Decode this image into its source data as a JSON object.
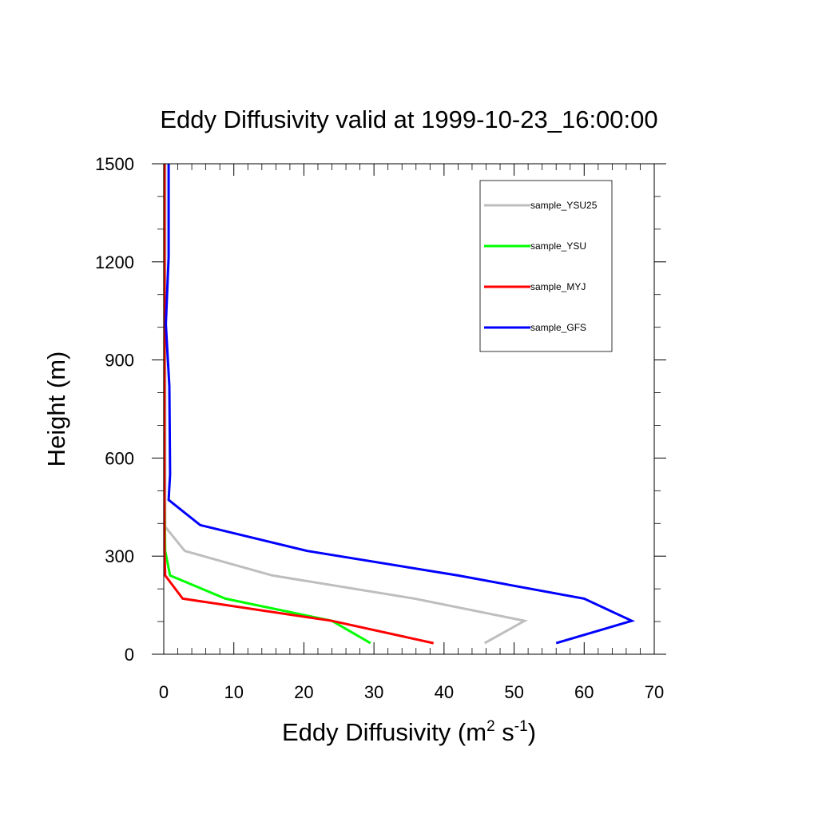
{
  "chart_data": {
    "type": "line",
    "title": "Eddy Diffusivity valid at 1999-10-23_16:00:00",
    "xlabel": "Eddy Diffusivity (m",
    "xlabel_unit": {
      "sup1": "2",
      "mid": " s",
      "sup2": "-1",
      "close": ")"
    },
    "ylabel": "Height (m)",
    "xlim": [
      0,
      70
    ],
    "ylim": [
      0,
      1500
    ],
    "xticks": [
      0,
      10,
      20,
      30,
      40,
      50,
      60,
      70
    ],
    "yticks": [
      0,
      300,
      600,
      900,
      1200,
      1500
    ],
    "legend": {
      "placement": "top-right"
    },
    "grid": false,
    "series": [
      {
        "name": "sample_YSU25",
        "color": "#bebebe",
        "points": [
          [
            45.8,
            34
          ],
          [
            51.5,
            102
          ],
          [
            35.8,
            170
          ],
          [
            15.5,
            241
          ],
          [
            3.0,
            316
          ],
          [
            0.2,
            390
          ],
          [
            0.2,
            500
          ],
          [
            0.2,
            800
          ],
          [
            0.2,
            1100
          ],
          [
            0.2,
            1500
          ]
        ]
      },
      {
        "name": "sample_YSU",
        "color": "#00ff00",
        "points": [
          [
            29.5,
            34
          ],
          [
            24.0,
            102
          ],
          [
            8.8,
            170
          ],
          [
            0.9,
            241
          ],
          [
            0.2,
            316
          ],
          [
            0.1,
            500
          ],
          [
            0.1,
            800
          ],
          [
            0.1,
            1100
          ],
          [
            0.1,
            1500
          ]
        ]
      },
      {
        "name": "sample_MYJ",
        "color": "#ff0000",
        "points": [
          [
            38.5,
            34
          ],
          [
            24.0,
            102
          ],
          [
            2.7,
            170
          ],
          [
            0.2,
            241
          ],
          [
            0.1,
            316
          ],
          [
            0.1,
            500
          ],
          [
            0.1,
            800
          ],
          [
            0.1,
            1100
          ],
          [
            0.1,
            1500
          ]
        ]
      },
      {
        "name": "sample_GFS",
        "color": "#0000ff",
        "points": [
          [
            56.0,
            34
          ],
          [
            66.8,
            102
          ],
          [
            60.0,
            170
          ],
          [
            42.0,
            241
          ],
          [
            20.5,
            316
          ],
          [
            5.2,
            395
          ],
          [
            0.7,
            472
          ],
          [
            0.9,
            550
          ],
          [
            0.8,
            820
          ],
          [
            0.3,
            1010
          ],
          [
            0.7,
            1215
          ],
          [
            0.7,
            1500
          ]
        ]
      }
    ]
  }
}
